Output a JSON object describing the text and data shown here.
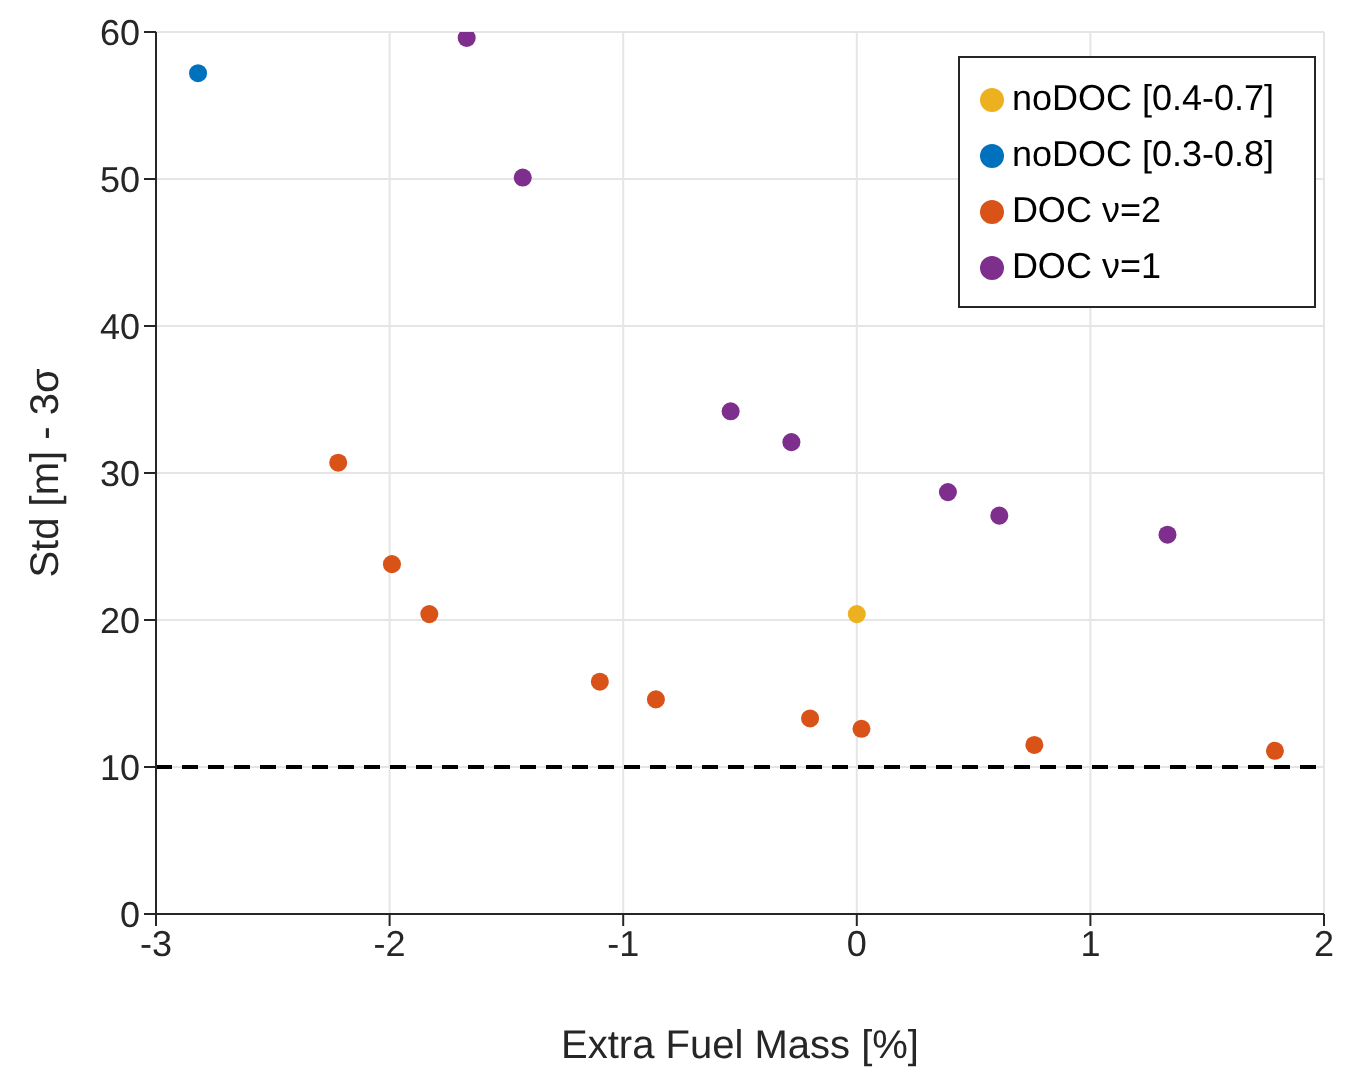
{
  "chart_data": {
    "type": "scatter",
    "xlabel": "Extra Fuel Mass [%]",
    "ylabel": "Std [m] - 3σ",
    "xlim": [
      -3,
      2
    ],
    "xticks": [
      -3,
      -2,
      -1,
      0,
      1,
      2
    ],
    "ylim": [
      0,
      60
    ],
    "yticks": [
      0,
      10,
      20,
      30,
      40,
      50,
      60
    ],
    "grid": true,
    "legend": "top right",
    "marker": "circle",
    "series": [
      {
        "name": "noDOC [0.4-0.7]",
        "color": "#edb120",
        "x": [
          0.0
        ],
        "values": [
          20.4
        ]
      },
      {
        "name": "noDOC [0.3-0.8]",
        "color": "#0072bd",
        "x": [
          -2.82
        ],
        "values": [
          57.2
        ]
      },
      {
        "name": "DOC ν=2",
        "color": "#d95319",
        "x": [
          -2.22,
          -1.99,
          -1.83,
          -1.1,
          -0.86,
          -0.2,
          0.02,
          0.76,
          1.79
        ],
        "values": [
          30.7,
          23.8,
          20.4,
          15.8,
          14.6,
          13.3,
          12.6,
          11.5,
          11.1
        ]
      },
      {
        "name": "DOC ν=1",
        "color": "#7e2f8e",
        "x": [
          -1.67,
          -1.43,
          -0.54,
          -0.28,
          0.39,
          0.61,
          1.33
        ],
        "values": [
          59.6,
          50.1,
          34.2,
          32.1,
          28.7,
          27.1,
          25.8
        ]
      }
    ],
    "ref_lines": [
      {
        "axis": "y",
        "value": 10,
        "color": "#000000",
        "line_style": "dashed"
      }
    ]
  }
}
